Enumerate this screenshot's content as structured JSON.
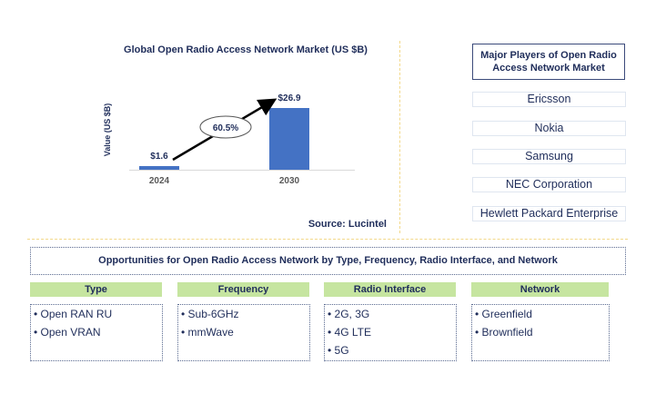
{
  "chart_data": {
    "type": "bar",
    "title": "Global Open Radio Access Network Market (US $B)",
    "ylabel": "Value (US $B)",
    "xlabel": "",
    "categories": [
      "2024",
      "2030"
    ],
    "values": [
      1.6,
      26.9
    ],
    "data_labels": [
      "$1.6",
      "$26.9"
    ],
    "cagr_label": "60.5%",
    "bar_color": "#4472c4",
    "ylim": [
      0,
      30
    ],
    "grid": false,
    "source": "Source: Lucintel"
  },
  "players": {
    "title": "Major Players of Open Radio Access Network Market",
    "items": [
      "Ericsson",
      "Nokia",
      "Samsung",
      "NEC Corporation",
      "Hewlett Packard Enterprise"
    ]
  },
  "opportunities": {
    "title": "Opportunities for Open Radio Access Network by Type, Frequency, Radio Interface, and Network",
    "header_color": "#c6e5a0",
    "segments": [
      {
        "label": "Type",
        "items": [
          "• Open RAN RU",
          "• Open VRAN"
        ]
      },
      {
        "label": "Frequency",
        "items": [
          "• Sub-6GHz",
          "• mmWave"
        ]
      },
      {
        "label": "Radio Interface",
        "items": [
          "• 2G, 3G",
          "• 4G LTE",
          "• 5G"
        ]
      },
      {
        "label": "Network",
        "items": [
          "• Greenfield",
          "• Brownfield"
        ]
      }
    ]
  }
}
